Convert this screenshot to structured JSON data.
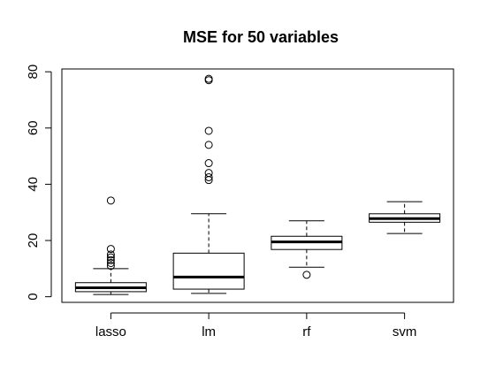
{
  "chart_data": {
    "type": "box",
    "title": "MSE for 50 variables",
    "xlabel": "",
    "ylabel": "",
    "ylim": [
      -2,
      81
    ],
    "yticks": [
      0,
      20,
      40,
      60,
      80
    ],
    "grid": false,
    "categories": [
      "lasso",
      "lm",
      "rf",
      "svm"
    ],
    "boxes": [
      {
        "name": "lasso",
        "min": 0.8,
        "q1": 1.8,
        "median": 3.2,
        "q3": 5.0,
        "max": 10.0,
        "outliers": [
          11.0,
          12.0,
          13.0,
          14.0,
          15.0,
          17.0,
          34.2
        ]
      },
      {
        "name": "lm",
        "min": 1.2,
        "q1": 2.7,
        "median": 7.0,
        "q3": 15.5,
        "max": 29.5,
        "outliers": [
          41.5,
          42.5,
          44.0,
          47.5,
          54.0,
          59.0,
          77.0,
          77.5
        ]
      },
      {
        "name": "rf",
        "min": 10.5,
        "q1": 16.8,
        "median": 19.5,
        "q3": 21.5,
        "max": 27.0,
        "outliers": [
          7.8
        ]
      },
      {
        "name": "svm",
        "min": 22.5,
        "q1": 26.5,
        "median": 27.8,
        "q3": 29.5,
        "max": 33.8,
        "outliers": []
      }
    ]
  }
}
